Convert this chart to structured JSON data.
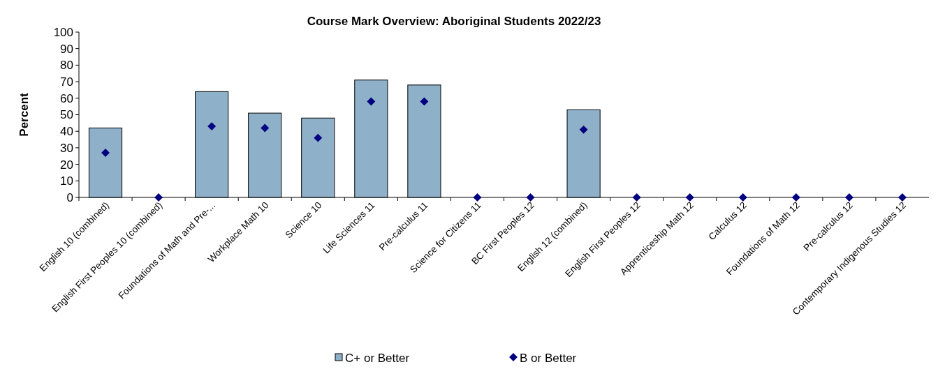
{
  "chart_data": {
    "type": "bar",
    "title": "Course Mark Overview: Aboriginal Students 2022/23",
    "ylabel": "Percent",
    "categories": [
      "English 10 (combined)",
      "English First Peoples 10 (combined)",
      "Foundations of Math and Pre-...",
      "Workplace Math 10",
      "Science 10",
      "Life Sciences 11",
      "Pre-calculus 11",
      "Science for Citizens 11",
      "BC First Peoples 12",
      "English 12 (combined)",
      "English First Peoples 12",
      "Apprenticeship Math 12",
      "Calculus 12",
      "Foundations of Math 12",
      "Pre-calculus 12",
      "Contemporary Indigenous Studies 12"
    ],
    "series": [
      {
        "name": "C+ or Better",
        "color": "#8eb1c9",
        "values": [
          42,
          0,
          64,
          51,
          48,
          71,
          68,
          0,
          0,
          53,
          0,
          0,
          0,
          0,
          0,
          0
        ]
      },
      {
        "name": "B or Better",
        "type": "scatter",
        "marker": "diamond",
        "color": "#000080",
        "values": [
          27,
          0,
          43,
          42,
          36,
          58,
          58,
          0,
          0,
          41,
          0,
          0,
          0,
          0,
          0,
          0
        ]
      }
    ],
    "ylim": [
      0,
      100
    ],
    "yticks": [
      0,
      10,
      20,
      30,
      40,
      50,
      60,
      70,
      80,
      90,
      100
    ],
    "grid": false,
    "legend": "bottom"
  }
}
